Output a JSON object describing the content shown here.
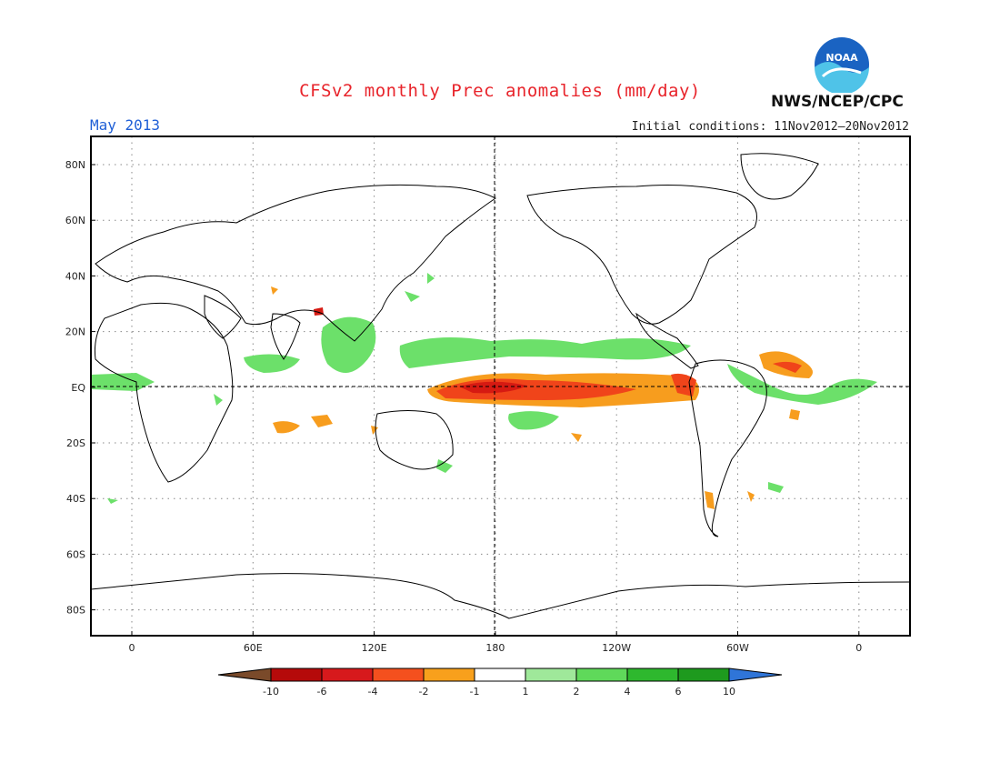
{
  "header": {
    "title": "CFSv2 monthly Prec anomalies (mm/day)",
    "valid_month": "May 2013",
    "initial_conditions": "Initial conditions: 11Nov2012–20Nov2012",
    "organization": "NWS/NCEP/CPC",
    "logo_text": "NOAA"
  },
  "map": {
    "projection": "equirectangular",
    "lon_ticks": [
      "0",
      "60E",
      "120E",
      "180",
      "120W",
      "60W",
      "0"
    ],
    "lat_ticks": [
      "80N",
      "60N",
      "40N",
      "20N",
      "EQ",
      "20S",
      "40S",
      "60S",
      "80S"
    ],
    "grid": "dotted",
    "reference_lines": [
      "equator",
      "dateline"
    ]
  },
  "colorbar": {
    "labels": [
      "-10",
      "-6",
      "-4",
      "-2",
      "-1",
      "1",
      "2",
      "4",
      "6",
      "10"
    ],
    "colors": [
      "#7a4a2a",
      "#b50a0a",
      "#d7191c",
      "#f4501e",
      "#f8a01c",
      "#ffffff",
      "#9fe89a",
      "#5fd95a",
      "#2eb82e",
      "#1e9a1e",
      "#2f75d8"
    ]
  },
  "anomaly_regions": {
    "wet_color": "#6ce06a",
    "dry_color": "#f79d1e",
    "strong_dry_color": "#f0441a",
    "extreme_dry_color": "#d61a12"
  }
}
